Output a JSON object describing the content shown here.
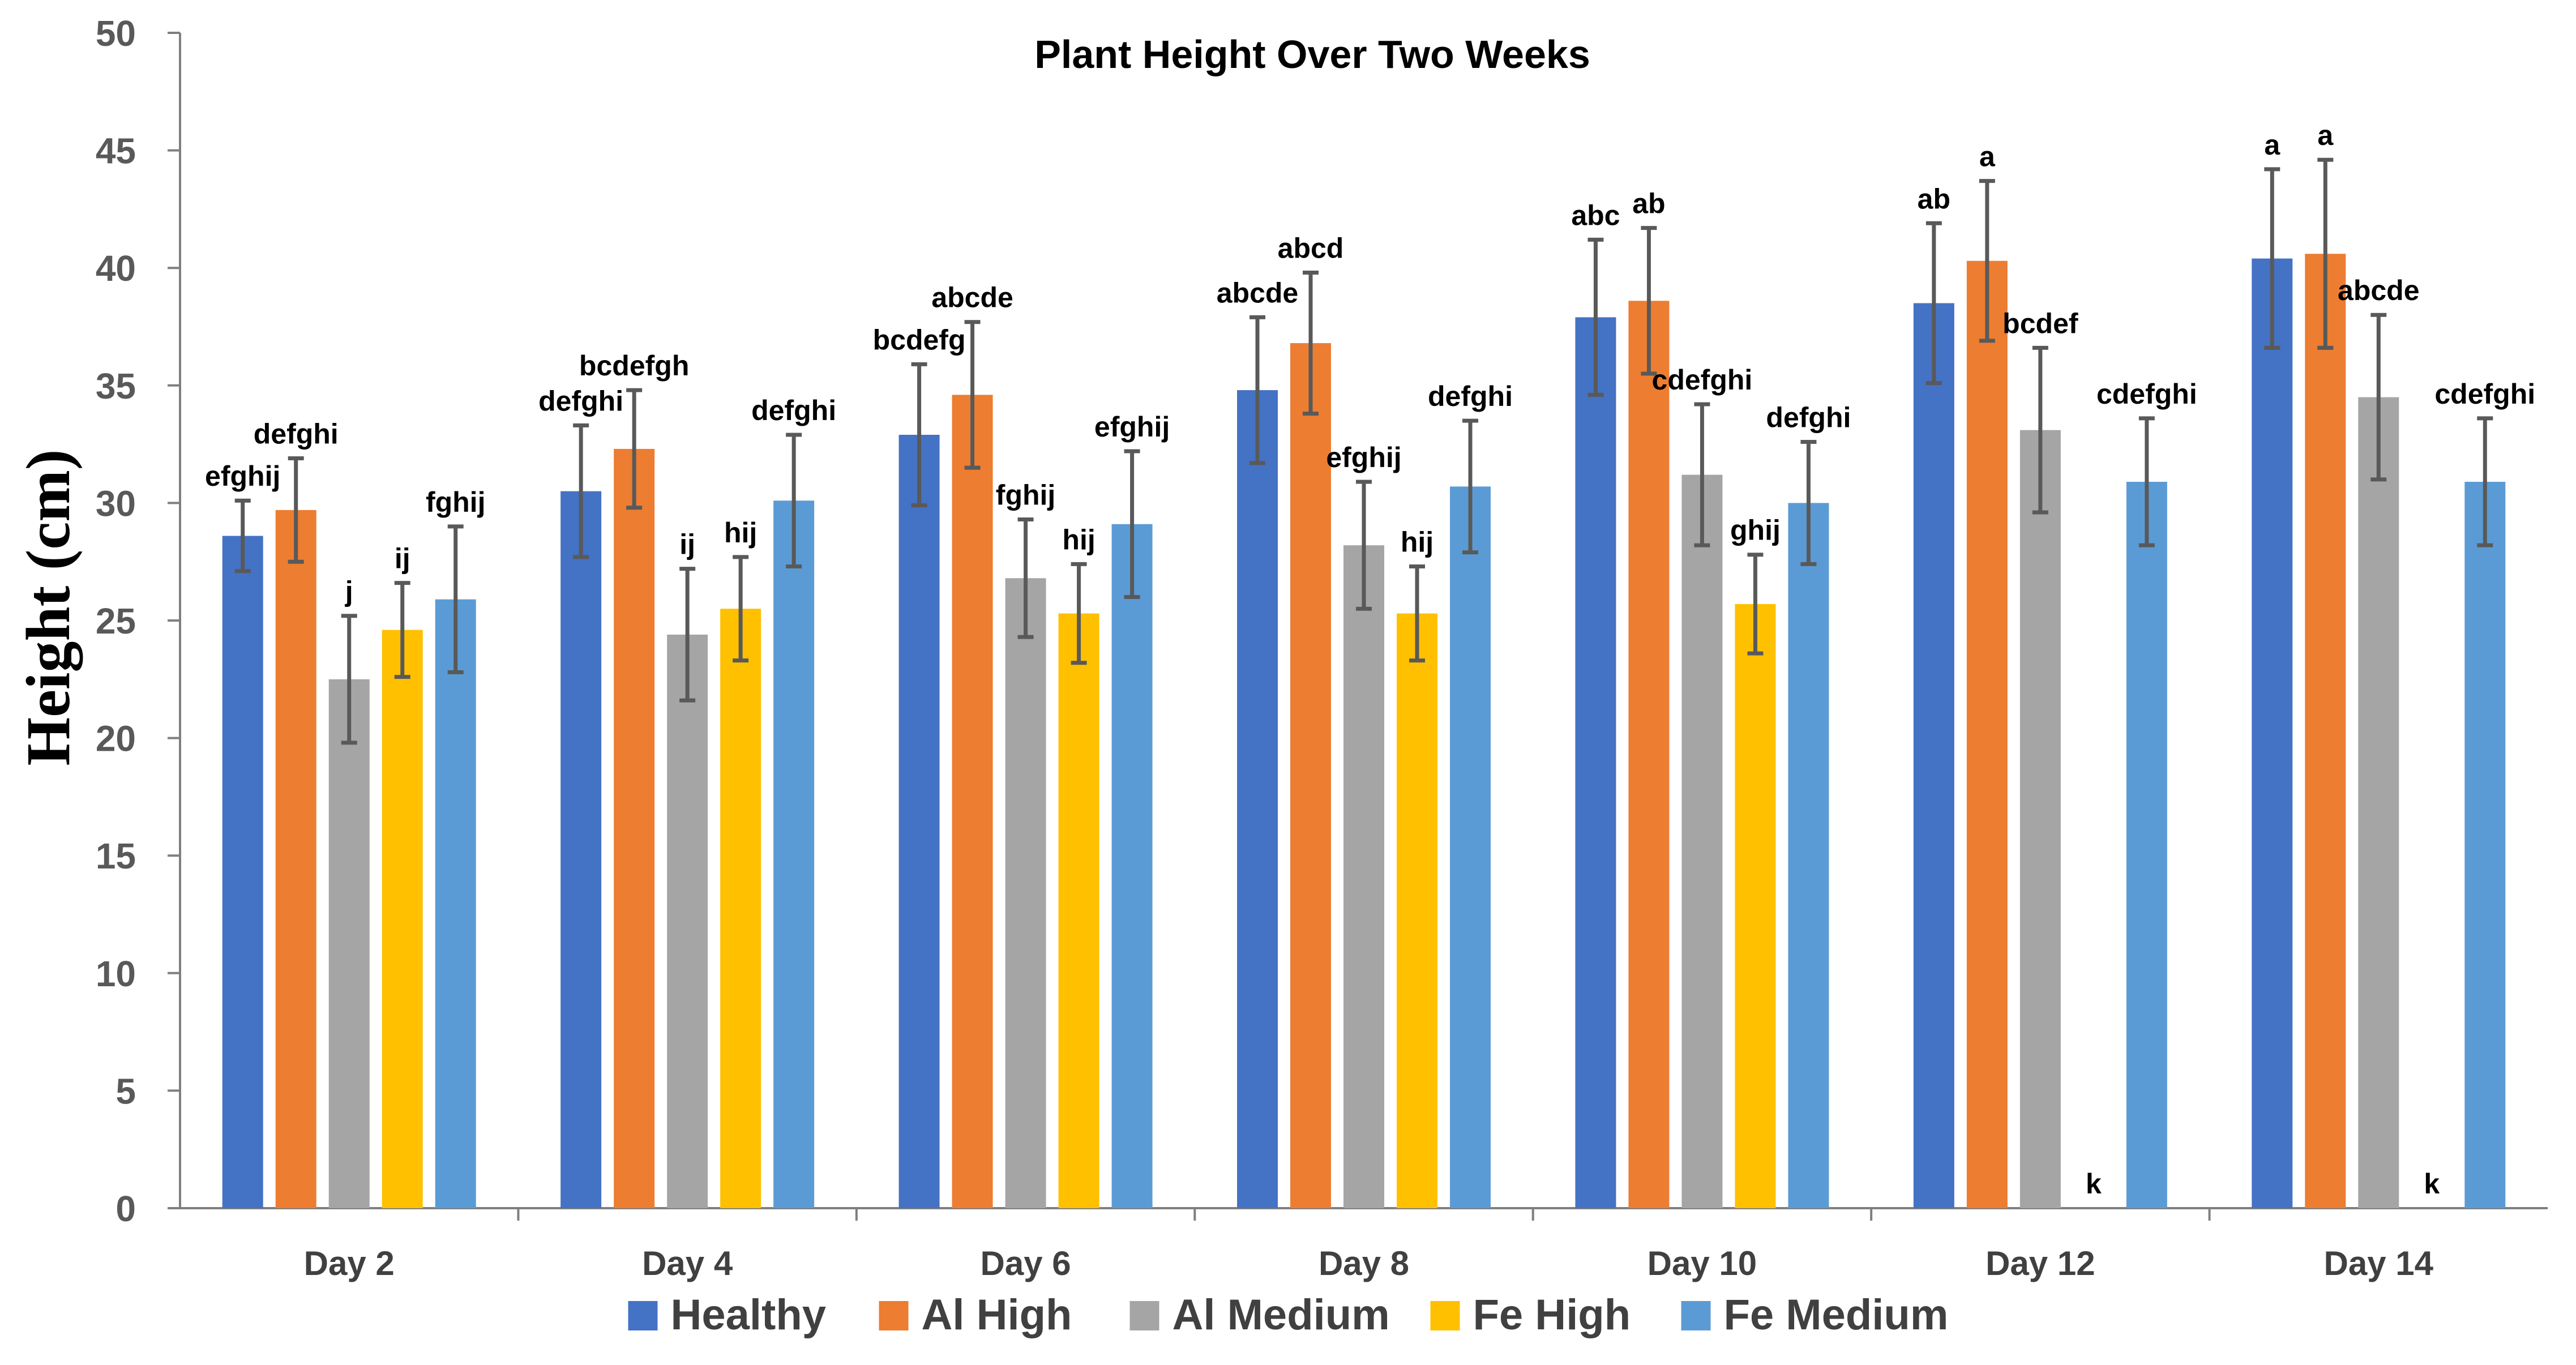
{
  "chart_data": {
    "type": "bar",
    "title": "Plant Height Over Two Weeks",
    "xlabel": "",
    "ylabel": "Height (cm)",
    "ylim": [
      0,
      50
    ],
    "yticks": [
      0,
      5,
      10,
      15,
      20,
      25,
      30,
      35,
      40,
      45,
      50
    ],
    "grid": false,
    "legend_position": "bottom",
    "categories": [
      "Day 2",
      "Day 4",
      "Day 6",
      "Day 8",
      "Day 10",
      "Day 12",
      "Day 14"
    ],
    "series": [
      {
        "name": "Healthy",
        "color": "#4472C4",
        "values": [
          28.6,
          30.5,
          32.9,
          34.8,
          37.9,
          38.5,
          40.4
        ],
        "errors": [
          1.5,
          2.8,
          3.0,
          3.1,
          3.3,
          3.4,
          3.8
        ],
        "labels": [
          "efghij",
          "defghi",
          "bcdefg",
          "abcde",
          "abc",
          "ab",
          "a"
        ]
      },
      {
        "name": "Al High",
        "color": "#ED7D31",
        "values": [
          29.7,
          32.3,
          34.6,
          36.8,
          38.6,
          40.3,
          40.6
        ],
        "errors": [
          2.2,
          2.5,
          3.1,
          3.0,
          3.1,
          3.4,
          4.0
        ],
        "labels": [
          "defghi",
          "bcdefgh",
          "abcde",
          "abcd",
          "ab",
          "a",
          "a"
        ]
      },
      {
        "name": "Al Medium",
        "color": "#A5A5A5",
        "values": [
          22.5,
          24.4,
          26.8,
          28.2,
          31.2,
          33.1,
          34.5
        ],
        "errors": [
          2.7,
          2.8,
          2.5,
          2.7,
          3.0,
          3.5,
          3.5
        ],
        "labels": [
          "j",
          "ij",
          "fghij",
          "efghij",
          "cdefghi",
          "bcdef",
          "abcde"
        ]
      },
      {
        "name": "Fe High",
        "color": "#FFC000",
        "values": [
          24.6,
          25.5,
          25.3,
          25.3,
          25.7,
          0,
          0
        ],
        "errors": [
          2.0,
          2.2,
          2.1,
          2.0,
          2.1,
          0,
          0
        ],
        "labels": [
          "ij",
          "hij",
          "hij",
          "hij",
          "ghij",
          "k",
          "k"
        ]
      },
      {
        "name": "Fe Medium",
        "color": "#5B9BD5",
        "values": [
          25.9,
          30.1,
          29.1,
          30.7,
          30.0,
          30.9,
          30.9
        ],
        "errors": [
          3.1,
          2.8,
          3.1,
          2.8,
          2.6,
          2.7,
          2.7
        ],
        "labels": [
          "fghij",
          "defghi",
          "efghij",
          "defghi",
          "defghi",
          "cdefghi",
          "cdefghi"
        ]
      }
    ]
  }
}
